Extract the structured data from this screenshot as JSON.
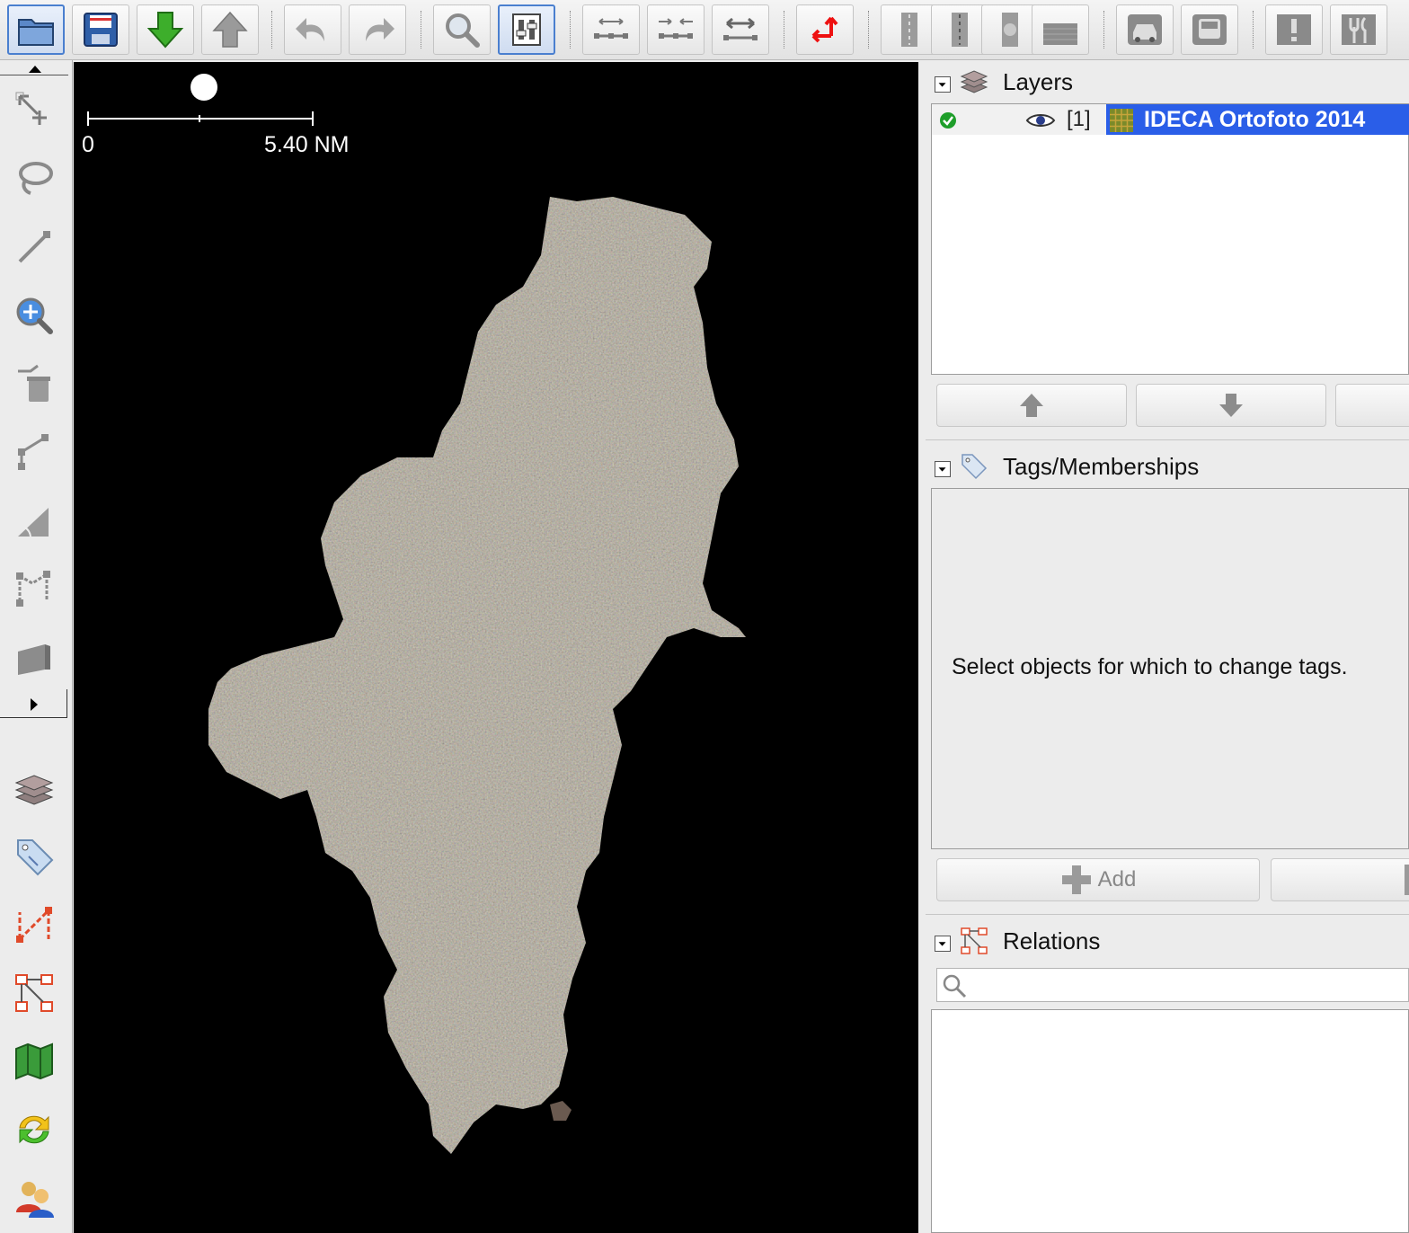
{
  "toolbar": {
    "buttons": [
      {
        "name": "open-file-icon"
      },
      {
        "name": "save-icon"
      },
      {
        "name": "download-icon"
      },
      {
        "name": "upload-icon"
      },
      {
        "name": "undo-icon"
      },
      {
        "name": "redo-icon"
      },
      {
        "name": "search-icon"
      },
      {
        "name": "preferences-icon"
      },
      {
        "name": "split-way-icon"
      },
      {
        "name": "combine-way-icon"
      },
      {
        "name": "reverse-way-icon"
      },
      {
        "name": "wireframe-toggle-icon"
      },
      {
        "name": "preset-road-icon"
      },
      {
        "name": "preset-track-icon"
      },
      {
        "name": "preset-node-icon"
      },
      {
        "name": "preset-building-icon"
      },
      {
        "name": "preset-car-icon"
      },
      {
        "name": "preset-bus-icon"
      },
      {
        "name": "preset-warning-icon"
      },
      {
        "name": "preset-restaurant-icon"
      }
    ]
  },
  "map": {
    "scale_zero": "0",
    "scale_label": "5.40 NM"
  },
  "panels": {
    "layers": {
      "title": "Layers",
      "items": [
        {
          "index": "[1]",
          "name": "IDECA Ortofoto 2014",
          "active": true,
          "visible": true
        }
      ]
    },
    "tags": {
      "title": "Tags/Memberships",
      "empty_message": "Select objects for which to change tags.",
      "add_label": "Add"
    },
    "relations": {
      "title": "Relations",
      "search_placeholder": ""
    }
  }
}
